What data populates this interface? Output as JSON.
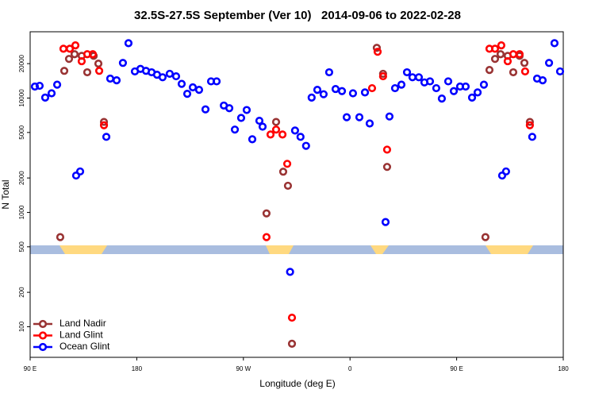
{
  "chart_data": {
    "type": "scatter",
    "title": "32.5S-27.5S September (Ver 10)   2014-09-06 to 2022-02-28",
    "xlabel": "Longitude (deg E)",
    "ylabel": "N Total",
    "xlim": [
      90,
      540
    ],
    "ylim": [
      54,
      38000
    ],
    "ylog": true,
    "legend": "bottom-left",
    "xticks": [
      {
        "value": 90,
        "label": "90 E"
      },
      {
        "value": 180,
        "label": "180"
      },
      {
        "value": 270,
        "label": "90 W"
      },
      {
        "value": 360,
        "label": "0"
      },
      {
        "value": 450,
        "label": "90 E"
      },
      {
        "value": 540,
        "label": "180"
      }
    ],
    "yticks": [
      100,
      200,
      500,
      1000,
      2000,
      5000,
      10000,
      20000
    ],
    "series": [
      {
        "name": "Land Nadir",
        "color": "#993333",
        "x": [
          115.4,
          118.8,
          122.8,
          127.5,
          133.5,
          138.2,
          143.6,
          147.6,
          152.3,
          289.5,
          297.6,
          303.6,
          307.6,
          311,
          382.6,
          387.9,
          391.3,
          474.3,
          477.7,
          482.4,
          487.1,
          493.1,
          497.8,
          503.1,
          507.2,
          511.8
        ],
        "values": [
          608,
          17300,
          22000,
          24200,
          23400,
          16800,
          23400,
          20000,
          6180,
          980,
          6180,
          2270,
          1710,
          71,
          27500,
          16300,
          2500,
          608,
          17600,
          22000,
          24200,
          23400,
          16800,
          23400,
          20300,
          6180
        ]
      },
      {
        "name": "Land Glint",
        "color": "#ff0000",
        "x": [
          118.1,
          123.5,
          128.2,
          133.5,
          138.2,
          142.9,
          148.3,
          152.3,
          289.5,
          292.9,
          297.6,
          303,
          307,
          311,
          378.6,
          383.3,
          387.9,
          391.3,
          477.7,
          482.4,
          487.7,
          493.1,
          497.8,
          503.1,
          507.8,
          511.8
        ],
        "values": [
          27000,
          27000,
          28900,
          21000,
          24200,
          24200,
          17300,
          5780,
          608,
          4800,
          5300,
          4800,
          2660,
          120,
          12200,
          25400,
          15500,
          3540,
          27000,
          27000,
          28900,
          21000,
          24200,
          24200,
          17100,
          5780
        ]
      },
      {
        "name": "Ocean Glint",
        "color": "#0000ff",
        "x": [
          94,
          98,
          102.7,
          108.1,
          112.8,
          128.8,
          132.2,
          154.3,
          157.6,
          163,
          168.3,
          173,
          178.4,
          183.1,
          187.8,
          192.5,
          197.1,
          201.8,
          207.8,
          213.2,
          217.9,
          222.6,
          227.3,
          232.6,
          238,
          242.7,
          247.4,
          253.5,
          258.1,
          262.8,
          268.1,
          272.8,
          277.5,
          283.5,
          286.2,
          309.4,
          313.6,
          318.2,
          322.9,
          327.6,
          332.4,
          337.7,
          342.4,
          347.8,
          353.2,
          357.2,
          362.5,
          367.9,
          372.6,
          376.6,
          390,
          393.3,
          398,
          403.4,
          408.1,
          412.7,
          418.1,
          422.8,
          427.5,
          432.8,
          437.5,
          442.9,
          447.6,
          452.9,
          457.6,
          463,
          467.7,
          473,
          488.4,
          491.7,
          513.8,
          517.9,
          522.6,
          528,
          532.6,
          537.3
        ],
        "values": [
          12600,
          12800,
          10100,
          11000,
          13100,
          2100,
          2280,
          4580,
          14800,
          14300,
          20300,
          30200,
          17100,
          18000,
          17300,
          16800,
          16000,
          15200,
          16300,
          15500,
          13300,
          10900,
          12400,
          11800,
          7960,
          14000,
          14000,
          8600,
          8150,
          5300,
          6700,
          7860,
          4360,
          6330,
          5620,
          302,
          5200,
          4580,
          3820,
          10100,
          11800,
          10800,
          16800,
          12000,
          11500,
          6800,
          11000,
          6800,
          11200,
          5990,
          823,
          6900,
          12200,
          13100,
          16800,
          15200,
          15200,
          13700,
          14000,
          12200,
          9900,
          14000,
          11500,
          12600,
          12600,
          10100,
          11200,
          13100,
          2100,
          2280,
          4580,
          14800,
          14300,
          20300,
          30200,
          17100
        ]
      }
    ]
  }
}
